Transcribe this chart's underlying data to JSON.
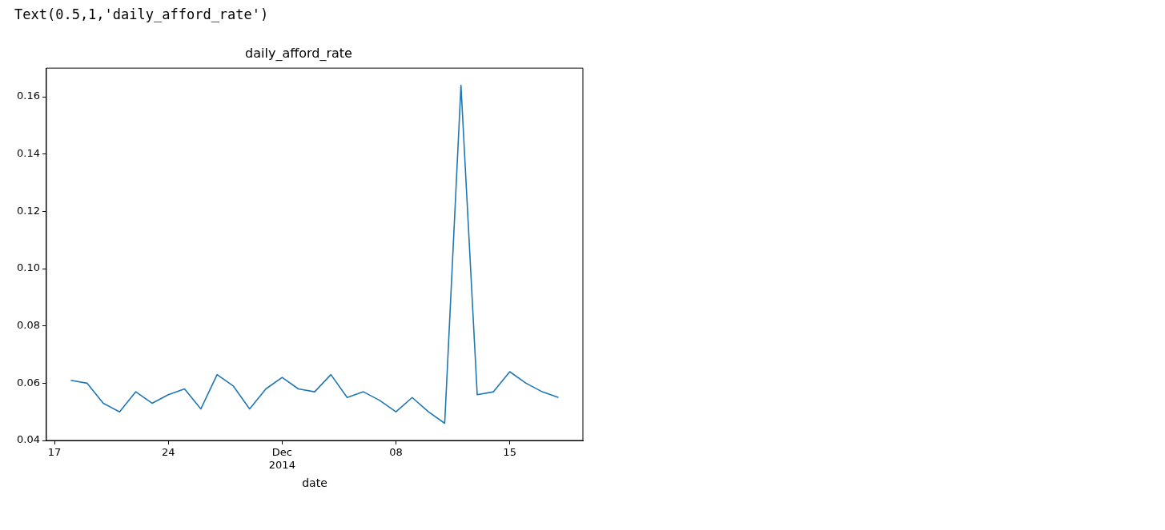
{
  "chart_data": {
    "type": "line",
    "title": "daily_afford_rate",
    "xlabel": "date",
    "annotations": [
      "Text(0.5,1,'daily_afford_rate')"
    ],
    "x": [
      "2014-11-18",
      "2014-11-19",
      "2014-11-20",
      "2014-11-21",
      "2014-11-22",
      "2014-11-23",
      "2014-11-24",
      "2014-11-25",
      "2014-11-26",
      "2014-11-27",
      "2014-11-28",
      "2014-11-29",
      "2014-11-30",
      "2014-12-01",
      "2014-12-02",
      "2014-12-03",
      "2014-12-04",
      "2014-12-05",
      "2014-12-06",
      "2014-12-07",
      "2014-12-08",
      "2014-12-09",
      "2014-12-10",
      "2014-12-11",
      "2014-12-12",
      "2014-12-13",
      "2014-12-14",
      "2014-12-15",
      "2014-12-16",
      "2014-12-17",
      "2014-12-18"
    ],
    "series": [
      {
        "color": "#1f77b4",
        "values": [
          0.061,
          0.06,
          0.053,
          0.05,
          0.057,
          0.053,
          0.056,
          0.058,
          0.051,
          0.063,
          0.059,
          0.051,
          0.058,
          0.062,
          0.058,
          0.057,
          0.063,
          0.055,
          0.057,
          0.054,
          0.05,
          0.055,
          0.05,
          0.046,
          0.164,
          0.056,
          0.057,
          0.064,
          0.06,
          0.057,
          0.055
        ]
      }
    ],
    "xlim": [
      "2014-11-16T12:00",
      "2014-12-19T12:00"
    ],
    "xticks": [
      {
        "value": "2014-11-17",
        "label": "17"
      },
      {
        "value": "2014-11-24",
        "label": "24"
      },
      {
        "value": "2014-12-01",
        "label": "Dec\n2014"
      },
      {
        "value": "2014-12-08",
        "label": "08"
      },
      {
        "value": "2014-12-15",
        "label": "15"
      }
    ],
    "ylim": [
      0.04,
      0.17
    ],
    "yticks": [
      0.04,
      0.06,
      0.08,
      {
        "value": 0.1,
        "label": "0.10"
      },
      0.12,
      0.14,
      0.16
    ],
    "grid": false,
    "legend": false,
    "marker": "none",
    "line_style": "solid"
  }
}
